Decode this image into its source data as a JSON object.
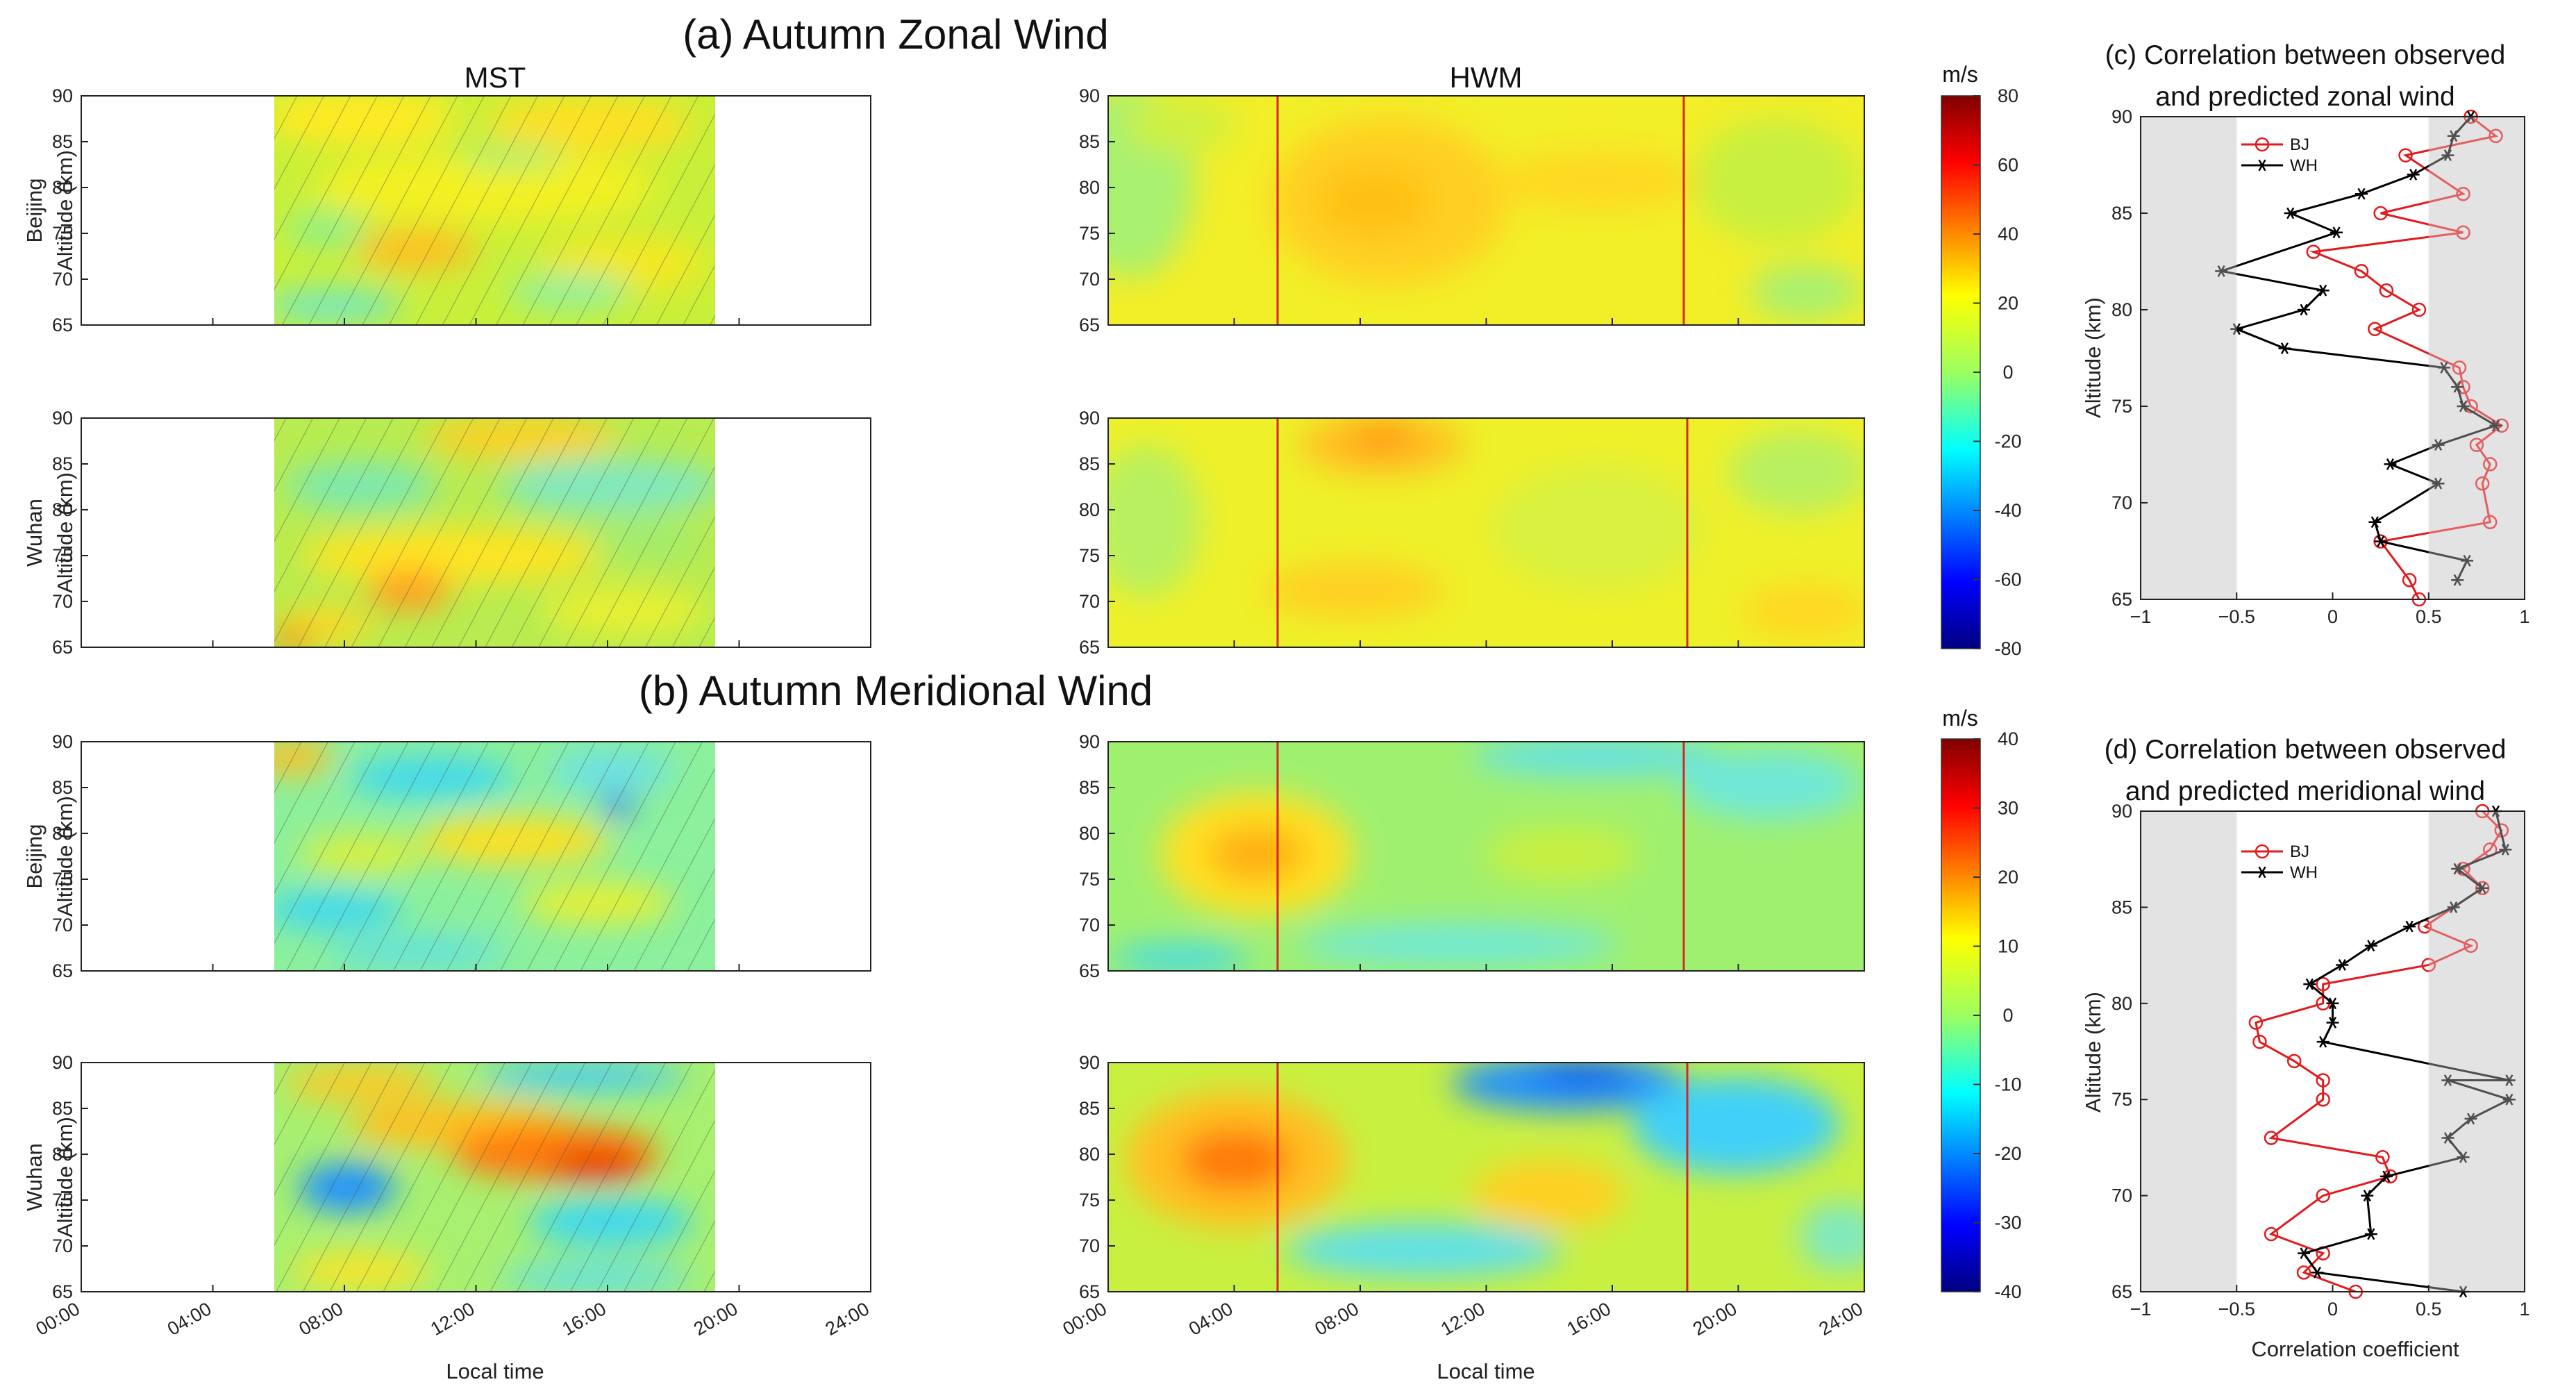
{
  "colors": {
    "bj": "#e31a1c",
    "wh": "#000000",
    "significance_band": "#e3e3e3",
    "hwm_marker_line": "#d62728",
    "colormap": "jet"
  },
  "sections": {
    "a_title": "(a)  Autumn Zonal Wind",
    "b_title": "(b)  Autumn Meridional Wind"
  },
  "columns": {
    "mst": "MST",
    "hwm": "HWM"
  },
  "rows": {
    "beijing": "Beijing",
    "wuhan": "Wuhan",
    "ylabel": "Altitude (km)",
    "xlabel": "Local time"
  },
  "axes": {
    "time_ticks": [
      "00:00",
      "04:00",
      "08:00",
      "12:00",
      "16:00",
      "20:00",
      "24:00"
    ],
    "alt_ticks": [
      "90",
      "85",
      "80",
      "75",
      "70",
      "65"
    ]
  },
  "colorbars": {
    "unit": "m/s",
    "zonal_ticks": [
      "80",
      "60",
      "40",
      "20",
      "0",
      "-20",
      "-40",
      "-60",
      "-80"
    ],
    "meridional_ticks": [
      "40",
      "30",
      "20",
      "10",
      "0",
      "-10",
      "-20",
      "-30",
      "-40"
    ]
  },
  "panel_c": {
    "title_line1": "(c) Correlation between observed",
    "title_line2": "and predicted zonal wind"
  },
  "panel_d": {
    "title_line1": "(d) Correlation between observed",
    "title_line2": "and predicted meridional wind",
    "xlabel": "Correlation coefficient"
  },
  "corr_axes": {
    "ylabel": "Altitude (km)",
    "x_ticks": [
      "−1",
      "−0.5",
      "0",
      "0.5",
      "1"
    ],
    "y_ticks": [
      "90",
      "85",
      "80",
      "75",
      "70",
      "65"
    ]
  },
  "legend": {
    "bj": "BJ",
    "wh": "WH"
  },
  "chart_data": [
    {
      "panel": "a-c",
      "type": "line",
      "title": "(c) Correlation between observed and predicted zonal wind",
      "xlabel": "",
      "ylabel": "Altitude (km)",
      "xlim": [
        -1,
        1
      ],
      "ylim": [
        65,
        90
      ],
      "shaded_x_ranges": [
        [
          -1,
          -0.5
        ],
        [
          0.5,
          1
        ]
      ],
      "series": [
        {
          "name": "BJ",
          "points": [
            [
              0.45,
              65
            ],
            [
              0.4,
              66
            ],
            [
              0.25,
              68
            ],
            [
              0.82,
              69
            ],
            [
              0.78,
              71
            ],
            [
              0.82,
              72
            ],
            [
              0.75,
              73
            ],
            [
              0.88,
              74
            ],
            [
              0.72,
              75
            ],
            [
              0.68,
              76
            ],
            [
              0.66,
              77
            ],
            [
              0.22,
              79
            ],
            [
              0.45,
              80
            ],
            [
              0.28,
              81
            ],
            [
              0.15,
              82
            ],
            [
              -0.1,
              83
            ],
            [
              0.68,
              84
            ],
            [
              0.25,
              85
            ],
            [
              0.68,
              86
            ],
            [
              0.38,
              88
            ],
            [
              0.85,
              89
            ],
            [
              0.72,
              90
            ]
          ]
        },
        {
          "name": "WH",
          "points": [
            [
              0.65,
              66
            ],
            [
              0.7,
              67
            ],
            [
              0.25,
              68
            ],
            [
              0.22,
              69
            ],
            [
              0.55,
              71
            ],
            [
              0.3,
              72
            ],
            [
              0.55,
              73
            ],
            [
              0.85,
              74
            ],
            [
              0.68,
              75
            ],
            [
              0.65,
              76
            ],
            [
              0.58,
              77
            ],
            [
              -0.25,
              78
            ],
            [
              -0.5,
              79
            ],
            [
              -0.15,
              80
            ],
            [
              -0.05,
              81
            ],
            [
              -0.58,
              82
            ],
            [
              0.02,
              84
            ],
            [
              -0.22,
              85
            ],
            [
              0.15,
              86
            ],
            [
              0.42,
              87
            ],
            [
              0.6,
              88
            ],
            [
              0.63,
              89
            ],
            [
              0.72,
              90
            ]
          ]
        }
      ]
    },
    {
      "panel": "b-d",
      "type": "line",
      "title": "(d) Correlation between observed and predicted meridional wind",
      "xlabel": "Correlation coefficient",
      "ylabel": "Altitude (km)",
      "xlim": [
        -1,
        1
      ],
      "ylim": [
        65,
        90
      ],
      "shaded_x_ranges": [
        [
          -1,
          -0.5
        ],
        [
          0.5,
          1
        ]
      ],
      "series": [
        {
          "name": "BJ",
          "points": [
            [
              0.12,
              65
            ],
            [
              -0.15,
              66
            ],
            [
              -0.05,
              67
            ],
            [
              -0.32,
              68
            ],
            [
              -0.05,
              70
            ],
            [
              0.3,
              71
            ],
            [
              0.26,
              72
            ],
            [
              -0.32,
              73
            ],
            [
              -0.05,
              75
            ],
            [
              -0.05,
              76
            ],
            [
              -0.2,
              77
            ],
            [
              -0.38,
              78
            ],
            [
              -0.4,
              79
            ],
            [
              -0.05,
              80
            ],
            [
              -0.05,
              81
            ],
            [
              0.5,
              82
            ],
            [
              0.72,
              83
            ],
            [
              0.48,
              84
            ],
            [
              0.78,
              86
            ],
            [
              0.68,
              87
            ],
            [
              0.82,
              88
            ],
            [
              0.88,
              89
            ],
            [
              0.78,
              90
            ]
          ]
        },
        {
          "name": "WH",
          "points": [
            [
              0.68,
              65
            ],
            [
              -0.08,
              66
            ],
            [
              -0.15,
              67
            ],
            [
              0.2,
              68
            ],
            [
              0.18,
              70
            ],
            [
              0.28,
              71
            ],
            [
              0.68,
              72
            ],
            [
              0.6,
              73
            ],
            [
              0.72,
              74
            ],
            [
              0.92,
              75
            ],
            [
              0.6,
              76
            ],
            [
              0.92,
              76
            ],
            [
              -0.05,
              78
            ],
            [
              0.0,
              79
            ],
            [
              0.0,
              80
            ],
            [
              -0.12,
              81
            ],
            [
              0.05,
              82
            ],
            [
              0.2,
              83
            ],
            [
              0.4,
              84
            ],
            [
              0.63,
              85
            ],
            [
              0.78,
              86
            ],
            [
              0.65,
              87
            ],
            [
              0.9,
              88
            ],
            [
              0.85,
              90
            ]
          ]
        }
      ]
    }
  ]
}
